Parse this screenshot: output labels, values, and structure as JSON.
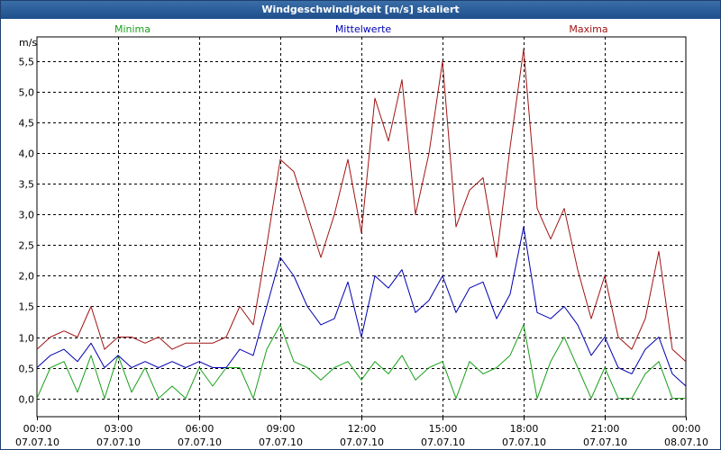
{
  "window": {
    "title": "Windgeschwindigkeit [m/s] skaliert"
  },
  "chart_data": {
    "type": "line",
    "title": "Windgeschwindigkeit [m/s] skaliert",
    "ylabel": "m/s",
    "xlabel": "",
    "ylim": [
      -0.3,
      5.9
    ],
    "xlim": [
      0,
      24
    ],
    "grid": true,
    "yticks": [
      0.0,
      0.5,
      1.0,
      1.5,
      2.0,
      2.5,
      3.0,
      3.5,
      4.0,
      4.5,
      5.0,
      5.5
    ],
    "ytick_labels": [
      "0,0",
      "0,5",
      "1,0",
      "1,5",
      "2,0",
      "2,5",
      "3,0",
      "3,5",
      "4,0",
      "4,5",
      "5,0",
      "5,5"
    ],
    "xticks": [
      {
        "x": 0,
        "time": "00:00",
        "date": "07.07.10"
      },
      {
        "x": 3,
        "time": "03:00",
        "date": "07.07.10"
      },
      {
        "x": 6,
        "time": "06:00",
        "date": "07.07.10"
      },
      {
        "x": 9,
        "time": "09:00",
        "date": "07.07.10"
      },
      {
        "x": 12,
        "time": "12:00",
        "date": "07.07.10"
      },
      {
        "x": 15,
        "time": "15:00",
        "date": "07.07.10"
      },
      {
        "x": 18,
        "time": "18:00",
        "date": "07.07.10"
      },
      {
        "x": 21,
        "time": "21:00",
        "date": "07.07.10"
      },
      {
        "x": 24,
        "time": "00:00",
        "date": "08.07.10"
      }
    ],
    "legend": [
      {
        "name": "Minima",
        "color": "#1aa01a",
        "position": "top-left"
      },
      {
        "name": "Mittelwerte",
        "color": "#0000b0",
        "position": "top-center"
      },
      {
        "name": "Maxima",
        "color": "#a01414",
        "position": "top-right"
      }
    ],
    "x_hours": [
      0.0,
      0.5,
      1.0,
      1.5,
      2.0,
      2.5,
      3.0,
      3.5,
      4.0,
      4.5,
      5.0,
      5.5,
      6.0,
      6.5,
      7.0,
      7.5,
      8.0,
      8.5,
      9.0,
      9.5,
      10.0,
      10.5,
      11.0,
      11.5,
      12.0,
      12.5,
      13.0,
      13.5,
      14.0,
      14.5,
      15.0,
      15.5,
      16.0,
      16.5,
      17.0,
      17.5,
      18.0,
      18.5,
      19.0,
      19.5,
      20.0,
      20.5,
      21.0,
      21.5,
      22.0,
      22.5,
      23.0,
      23.5,
      24.0
    ],
    "series": [
      {
        "name": "Maxima",
        "color": "#a01414",
        "values": [
          0.8,
          1.0,
          1.1,
          1.0,
          1.5,
          0.8,
          1.0,
          1.0,
          0.9,
          1.0,
          0.8,
          0.9,
          0.9,
          0.9,
          1.0,
          1.5,
          1.2,
          2.5,
          3.9,
          3.7,
          3.0,
          2.3,
          3.0,
          3.9,
          2.7,
          4.9,
          4.2,
          5.2,
          3.0,
          4.0,
          5.5,
          2.8,
          3.4,
          3.6,
          2.3,
          4.1,
          5.7,
          3.1,
          2.6,
          3.1,
          2.1,
          1.3,
          2.0,
          1.0,
          0.8,
          1.3,
          2.4,
          0.8,
          0.6
        ]
      },
      {
        "name": "Mittelwerte",
        "color": "#0000b0",
        "values": [
          0.5,
          0.7,
          0.8,
          0.6,
          0.9,
          0.5,
          0.7,
          0.5,
          0.6,
          0.5,
          0.6,
          0.5,
          0.6,
          0.5,
          0.5,
          0.8,
          0.7,
          1.5,
          2.3,
          2.0,
          1.5,
          1.2,
          1.3,
          1.9,
          1.0,
          2.0,
          1.8,
          2.1,
          1.4,
          1.6,
          2.0,
          1.4,
          1.8,
          1.9,
          1.3,
          1.7,
          2.8,
          1.4,
          1.3,
          1.5,
          1.2,
          0.7,
          1.0,
          0.5,
          0.4,
          0.8,
          1.0,
          0.4,
          0.2
        ]
      },
      {
        "name": "Minima",
        "color": "#1aa01a",
        "values": [
          0.0,
          0.5,
          0.6,
          0.1,
          0.7,
          0.0,
          0.7,
          0.1,
          0.5,
          0.0,
          0.2,
          0.0,
          0.5,
          0.2,
          0.5,
          0.5,
          0.0,
          0.8,
          1.2,
          0.6,
          0.5,
          0.3,
          0.5,
          0.6,
          0.3,
          0.6,
          0.4,
          0.7,
          0.3,
          0.5,
          0.6,
          0.0,
          0.6,
          0.4,
          0.5,
          0.7,
          1.2,
          0.0,
          0.6,
          1.0,
          0.5,
          0.0,
          0.5,
          0.0,
          0.0,
          0.4,
          0.6,
          0.0,
          0.0
        ]
      }
    ]
  }
}
